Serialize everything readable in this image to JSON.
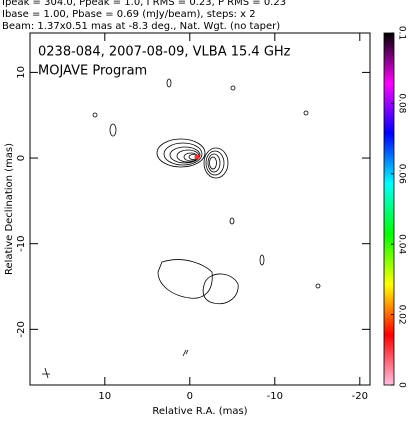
{
  "chart_data": {
    "type": "contour",
    "header": [
      "Ipeak = 304.0, Ppeak = 1.0, I RMS = 0.23, P RMS = 0.23",
      "Ibase = 1.00, Pbase = 0.69 (mJy/beam), steps: x 2",
      "Beam: 1.37x0.51 mas at -8.3 deg., Nat. Wgt. (no taper)"
    ],
    "title": "0238-084, 2007-08-09, VLBA 15.4 GHz",
    "subtitle": "MOJAVE Program",
    "xlabel": "Relative R.A. (mas)",
    "ylabel": "Relative Declination (mas)",
    "xlim": [
      18.8,
      -21.2
    ],
    "xticks": [
      10,
      0,
      -10,
      -20
    ],
    "ylim": [
      -26.5,
      14.6
    ],
    "yticks": [
      10,
      0,
      -10,
      -20
    ],
    "colorbar": {
      "lim": [
        0,
        0.1
      ],
      "ticks": [
        0,
        0.02,
        0.04,
        0.06,
        0.08,
        0.1
      ],
      "colors": [
        "#ffc0e0",
        "#ff0000",
        "#ffff00",
        "#00ff00",
        "#00ffff",
        "#0000ff",
        "#ff00ff",
        "#000000"
      ]
    }
  }
}
